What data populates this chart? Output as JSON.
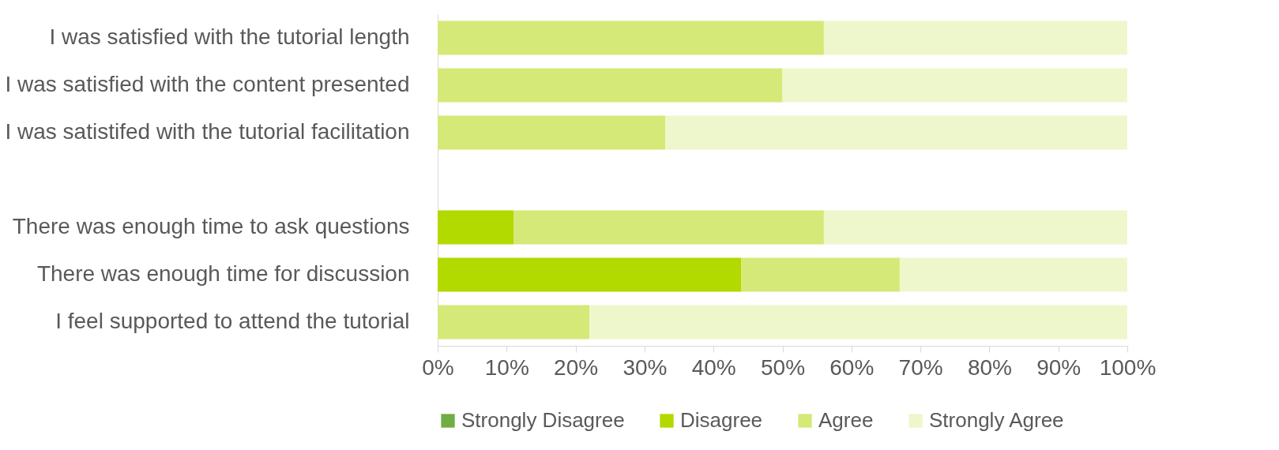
{
  "chart_data": {
    "type": "bar",
    "orientation": "horizontal",
    "stacked": true,
    "categories": [
      "I was satisfied with the tutorial length",
      "I was satisfied with the content presented",
      "I was satistifed with the tutorial facilitation",
      null,
      "There was enough time to ask questions",
      "There was enough time for discussion",
      "I feel supported to attend the tutorial"
    ],
    "series": [
      {
        "name": "Strongly Disagree",
        "color": "#70ad47",
        "values": [
          null,
          null,
          null,
          null,
          null,
          null,
          null
        ]
      },
      {
        "name": "Disagree",
        "color": "#b2d900",
        "values": [
          null,
          null,
          null,
          null,
          11,
          44,
          null
        ]
      },
      {
        "name": "Agree",
        "color": "#d4e977",
        "values": [
          56,
          50,
          33,
          null,
          45,
          23,
          22
        ]
      },
      {
        "name": "Strongly Agree",
        "color": "#eef7cc",
        "values": [
          44,
          50,
          67,
          null,
          44,
          33,
          78
        ]
      }
    ],
    "xlim": [
      0,
      100
    ],
    "xticks": [
      {
        "value": 0,
        "label": "0%"
      },
      {
        "value": 10,
        "label": "10%"
      },
      {
        "value": 20,
        "label": "20%"
      },
      {
        "value": 30,
        "label": "30%"
      },
      {
        "value": 40,
        "label": "40%"
      },
      {
        "value": 50,
        "label": "50%"
      },
      {
        "value": 60,
        "label": "60%"
      },
      {
        "value": 70,
        "label": "70%"
      },
      {
        "value": 80,
        "label": "80%"
      },
      {
        "value": 90,
        "label": "90%"
      },
      {
        "value": 100,
        "label": "100%"
      }
    ],
    "grid": false,
    "legend": "bottom"
  }
}
